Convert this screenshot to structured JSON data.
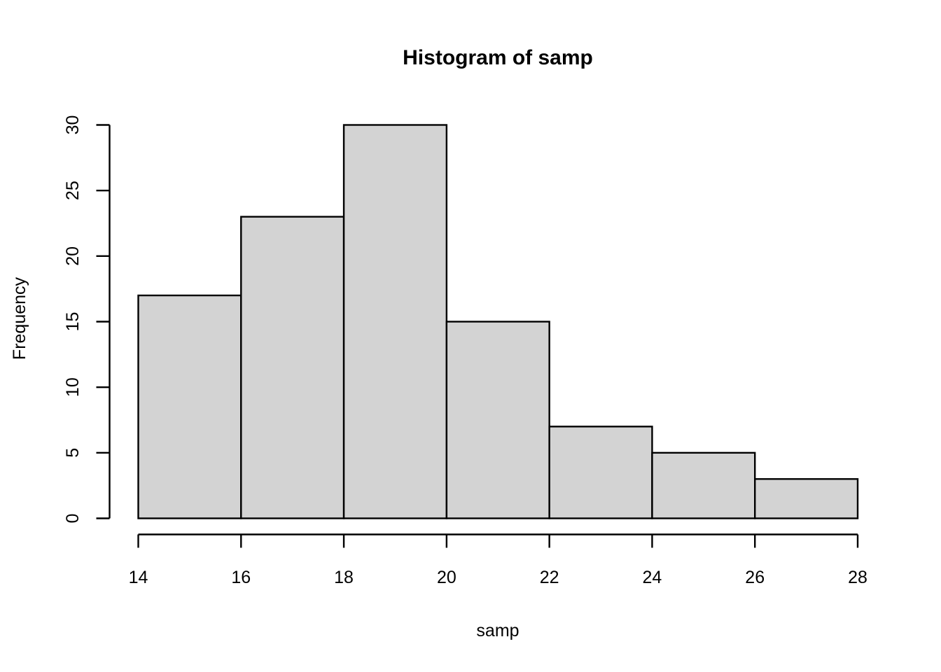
{
  "chart_data": {
    "type": "bar",
    "subtype": "histogram",
    "title": "Histogram of samp",
    "xlabel": "samp",
    "ylabel": "Frequency",
    "bin_edges": [
      14,
      16,
      18,
      20,
      22,
      24,
      26,
      28
    ],
    "counts": [
      17,
      23,
      30,
      15,
      7,
      5,
      3
    ],
    "x_ticks": [
      "14",
      "16",
      "18",
      "20",
      "22",
      "24",
      "26",
      "28"
    ],
    "x_tick_values": [
      14,
      16,
      18,
      20,
      22,
      24,
      26,
      28
    ],
    "y_ticks": [
      "0",
      "5",
      "10",
      "15",
      "20",
      "25",
      "30"
    ],
    "y_tick_values": [
      0,
      5,
      10,
      15,
      20,
      25,
      30
    ],
    "xlim": [
      14,
      28
    ],
    "ylim": [
      0,
      30
    ],
    "grid": "off",
    "legend": "none",
    "colors": {
      "bar_fill": "#d3d3d3",
      "bar_stroke": "#000000",
      "axis": "#000000",
      "text": "#000000",
      "background": "#ffffff"
    }
  }
}
